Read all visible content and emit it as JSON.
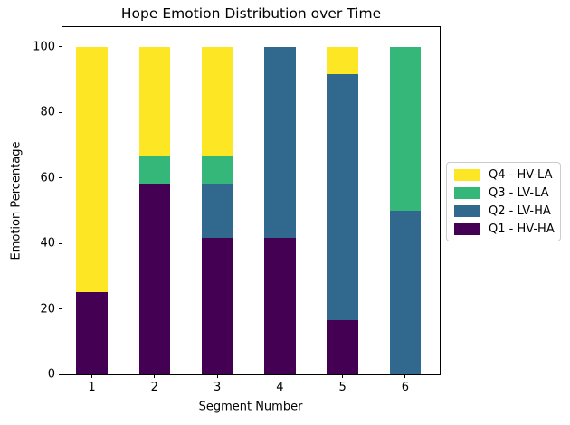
{
  "figure": {
    "background": "#ffffff",
    "axis_color": "#000000"
  },
  "chart_data": {
    "type": "bar",
    "stacked": true,
    "title": "Hope Emotion Distribution over Time",
    "xlabel": "Segment Number",
    "ylabel": "Emotion Percentage",
    "categories": [
      "1",
      "2",
      "3",
      "4",
      "5",
      "6"
    ],
    "series": [
      {
        "name": "Q1 - HV-HA",
        "color": "#440154",
        "values": [
          25,
          58.33,
          41.67,
          41.67,
          16.67,
          0
        ]
      },
      {
        "name": "Q2 - LV-HA",
        "color": "#31688E",
        "values": [
          0,
          0,
          16.67,
          58.33,
          75,
          50
        ]
      },
      {
        "name": "Q3 - LV-LA",
        "color": "#35B779",
        "values": [
          0,
          8.33,
          8.33,
          0,
          0,
          50
        ]
      },
      {
        "name": "Q4 - HV-LA",
        "color": "#FDE725",
        "values": [
          75,
          33.33,
          33.33,
          0,
          8.33,
          0
        ]
      }
    ],
    "legend_order": [
      "Q4 - HV-LA",
      "Q3 - LV-LA",
      "Q2 - LV-HA",
      "Q1 - HV-HA"
    ],
    "legend_position": "right-outside",
    "yticks": [
      0,
      20,
      40,
      60,
      80,
      100
    ],
    "ylim": [
      0,
      106
    ],
    "xlim": [
      0.53,
      6.55
    ],
    "bar_width": 0.5,
    "grid": false
  }
}
